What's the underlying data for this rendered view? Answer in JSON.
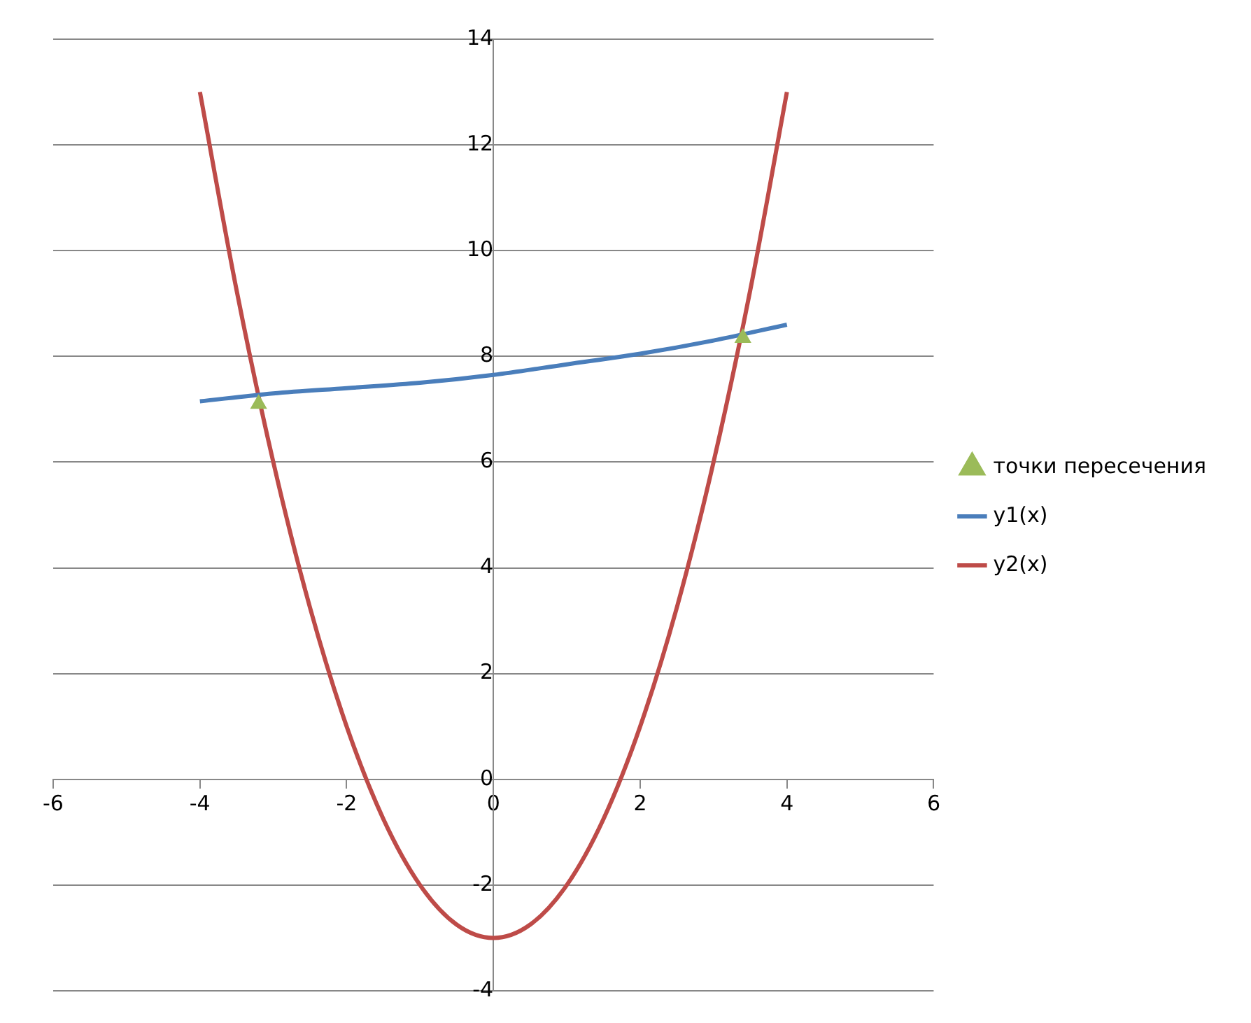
{
  "chart_data": {
    "type": "line",
    "xlim": [
      -6,
      6
    ],
    "xticks": [
      -6,
      -4,
      -2,
      0,
      2,
      4,
      6
    ],
    "ylim": [
      -4,
      14
    ],
    "yticks": [
      -4,
      -2,
      0,
      2,
      4,
      6,
      8,
      10,
      12,
      14
    ],
    "grid": "y",
    "legend": "right",
    "series": [
      {
        "name": "точки пересечения",
        "type": "scatter",
        "marker": "triangle",
        "color": "#9bbb59",
        "x": [
          -3.2,
          3.4
        ],
        "values": [
          7.1,
          8.35
        ]
      },
      {
        "name": "y1(x)",
        "type": "line",
        "color": "#4a7ebb",
        "x": [
          -4,
          -3,
          -2,
          -1,
          0,
          1,
          2,
          3,
          4
        ],
        "values": [
          7.15,
          7.3,
          7.4,
          7.5,
          7.65,
          7.85,
          8.05,
          8.3,
          8.6
        ]
      },
      {
        "name": "y2(x)",
        "type": "line",
        "color": "#be4b48",
        "x": [
          -4,
          -3.5,
          -3,
          -2.5,
          -2,
          -1.5,
          -1,
          -0.5,
          0,
          0.5,
          1,
          1.5,
          2,
          2.5,
          3,
          3.5,
          4
        ],
        "values": [
          13,
          9.25,
          6,
          3.25,
          1,
          -0.75,
          -2,
          -2.75,
          -3,
          -2.75,
          -2,
          -0.75,
          1,
          3.25,
          6,
          9.25,
          13
        ]
      }
    ]
  }
}
